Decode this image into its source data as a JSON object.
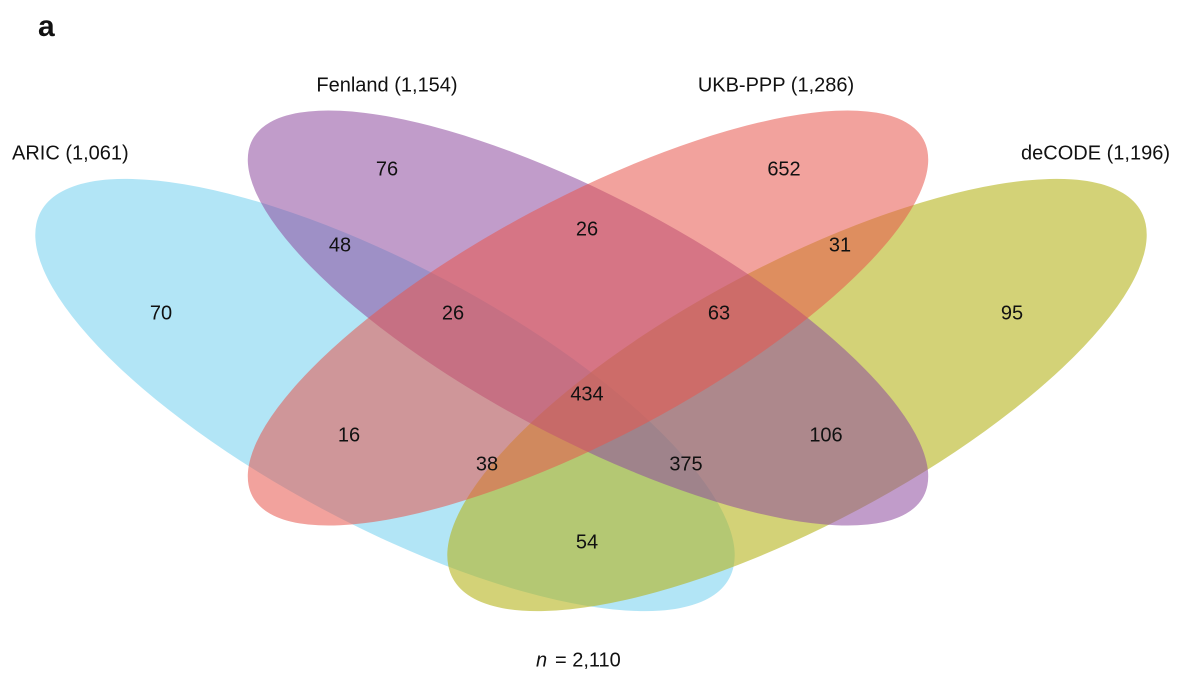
{
  "panel_label": "a",
  "sets": [
    {
      "label": "ARIC (1,061)"
    },
    {
      "label": "Fenland (1,154)"
    },
    {
      "label": "UKB-PPP (1,286)"
    },
    {
      "label": "deCODE (1,196)"
    }
  ],
  "regions": [
    "76",
    "652",
    "48",
    "26",
    "31",
    "70",
    "26",
    "63",
    "95",
    "434",
    "16",
    "106",
    "38",
    "375",
    "54"
  ],
  "footnote": {
    "variable": "n",
    "text": "= 2,110"
  }
}
